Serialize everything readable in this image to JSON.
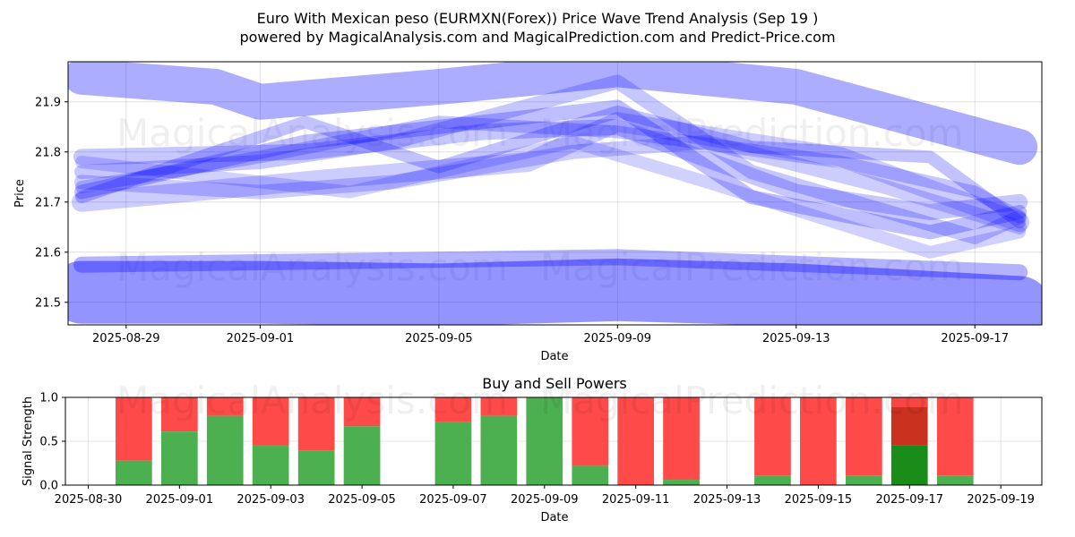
{
  "header": {
    "title_line1": "Euro With Mexican peso (EURMXN(Forex)) Price Wave Trend Analysis (Sep 19 )",
    "title_line2": "powered by MagicalAnalysis.com and MagicalPrediction.com and Predict-Price.com"
  },
  "watermarks": [
    "MagicalAnalysis.com",
    "MagicalPrediction.com"
  ],
  "chart_data": [
    {
      "type": "line",
      "title": "",
      "xlabel": "Date",
      "ylabel": "Price",
      "x_tick_labels": [
        "2025-08-29",
        "2025-09-01",
        "2025-09-05",
        "2025-09-09",
        "2025-09-13",
        "2025-09-17"
      ],
      "y_tick_labels": [
        "21.5",
        "21.6",
        "21.7",
        "21.8",
        "21.9"
      ],
      "ylim": [
        21.455,
        21.98
      ],
      "xlim_days_labels": [
        "2025-08-28",
        "2025-09-18"
      ],
      "grid": true,
      "color": "#0000ff",
      "series": [
        {
          "x": [
            "2025-08-28",
            "2025-08-31",
            "2025-09-01",
            "2025-09-05",
            "2025-09-09",
            "2025-09-13",
            "2025-09-18"
          ],
          "y": [
            21.95,
            21.93,
            21.9,
            21.93,
            21.965,
            21.93,
            21.81
          ],
          "width": 40,
          "opacity": 0.32
        },
        {
          "x": [
            "2025-08-28",
            "2025-09-01",
            "2025-09-05",
            "2025-09-09",
            "2025-09-13",
            "2025-09-18"
          ],
          "y": [
            21.52,
            21.52,
            21.515,
            21.525,
            21.515,
            21.49
          ],
          "width": 70,
          "opacity": 0.42
        },
        {
          "x": [
            "2025-08-28",
            "2025-09-09",
            "2025-09-18"
          ],
          "y": [
            21.575,
            21.59,
            21.56
          ],
          "width": 18,
          "opacity": 0.3
        },
        {
          "x": [
            "2025-08-28",
            "2025-09-02",
            "2025-09-09",
            "2025-09-12",
            "2025-09-16",
            "2025-09-18"
          ],
          "y": [
            21.72,
            21.82,
            21.89,
            21.71,
            21.64,
            21.68
          ],
          "width": 16,
          "opacity": 0.25
        },
        {
          "x": [
            "2025-08-28",
            "2025-09-01",
            "2025-09-04",
            "2025-09-09",
            "2025-09-12",
            "2025-09-17",
            "2025-09-18"
          ],
          "y": [
            21.76,
            21.78,
            21.82,
            21.94,
            21.76,
            21.63,
            21.67
          ],
          "width": 16,
          "opacity": 0.22
        },
        {
          "x": [
            "2025-08-28",
            "2025-09-03",
            "2025-09-07",
            "2025-09-09",
            "2025-09-14",
            "2025-09-18"
          ],
          "y": [
            21.7,
            21.75,
            21.78,
            21.86,
            21.79,
            21.66
          ],
          "width": 22,
          "opacity": 0.2
        },
        {
          "x": [
            "2025-08-28",
            "2025-09-02",
            "2025-09-06",
            "2025-09-09",
            "2025-09-13",
            "2025-09-16",
            "2025-09-18"
          ],
          "y": [
            21.79,
            21.8,
            21.84,
            21.85,
            21.72,
            21.68,
            21.7
          ],
          "width": 18,
          "opacity": 0.22
        },
        {
          "x": [
            "2025-08-28",
            "2025-09-01",
            "2025-09-04",
            "2025-09-08",
            "2025-09-11",
            "2025-09-15",
            "2025-09-18"
          ],
          "y": [
            21.74,
            21.72,
            21.74,
            21.8,
            21.82,
            21.73,
            21.65
          ],
          "width": 16,
          "opacity": 0.2
        },
        {
          "x": [
            "2025-08-28",
            "2025-09-02",
            "2025-09-05",
            "2025-09-09",
            "2025-09-12",
            "2025-09-16",
            "2025-09-18"
          ],
          "y": [
            21.71,
            21.86,
            21.77,
            21.88,
            21.81,
            21.79,
            21.66
          ],
          "width": 14,
          "opacity": 0.24
        },
        {
          "x": [
            "2025-08-28",
            "2025-09-01",
            "2025-09-05",
            "2025-09-09",
            "2025-09-14",
            "2025-09-17",
            "2025-09-18"
          ],
          "y": [
            21.73,
            21.79,
            21.86,
            21.84,
            21.78,
            21.72,
            21.67
          ],
          "width": 14,
          "opacity": 0.22
        },
        {
          "x": [
            "2025-08-28",
            "2025-09-03",
            "2025-09-08",
            "2025-09-11",
            "2025-09-16",
            "2025-09-18"
          ],
          "y": [
            21.78,
            21.72,
            21.82,
            21.74,
            21.6,
            21.64
          ],
          "width": 14,
          "opacity": 0.18
        }
      ]
    },
    {
      "type": "bar",
      "title": "Buy and Sell Powers",
      "xlabel": "Date",
      "ylabel": "Signal Strength",
      "x_tick_labels": [
        "2025-08-30",
        "2025-09-01",
        "2025-09-03",
        "2025-09-05",
        "2025-09-07",
        "2025-09-09",
        "2025-09-11",
        "2025-09-13",
        "2025-09-15",
        "2025-09-17",
        "2025-09-19"
      ],
      "y_tick_labels": [
        "0.0",
        "0.5",
        "1.0"
      ],
      "ylim": [
        0,
        1
      ],
      "grid": true,
      "buy_color": "#4caf50",
      "sell_color": "#ff4a4a",
      "highlight_buy_color": "#1a8c1a",
      "highlight_sell_color": "#c8321e",
      "categories": [
        "2025-08-31",
        "2025-09-01",
        "2025-09-02",
        "2025-09-03",
        "2025-09-04",
        "2025-09-05",
        "2025-09-07",
        "2025-09-08",
        "2025-09-09",
        "2025-09-10",
        "2025-09-11",
        "2025-09-12",
        "2025-09-14",
        "2025-09-15",
        "2025-09-16",
        "2025-09-17",
        "2025-09-18"
      ],
      "series": [
        {
          "name": "Buy",
          "values": [
            0.28,
            0.61,
            0.79,
            0.45,
            0.39,
            0.67,
            0.72,
            0.79,
            1.0,
            0.22,
            0.0,
            0.06,
            0.11,
            0.0,
            0.11,
            0.45,
            0.11
          ]
        },
        {
          "name": "Sell",
          "values": [
            0.72,
            0.39,
            0.21,
            0.55,
            0.61,
            0.33,
            0.28,
            0.21,
            0.0,
            0.78,
            1.0,
            0.94,
            0.89,
            1.0,
            0.89,
            0.55,
            0.89
          ]
        }
      ],
      "highlight_category": "2025-09-17"
    }
  ]
}
